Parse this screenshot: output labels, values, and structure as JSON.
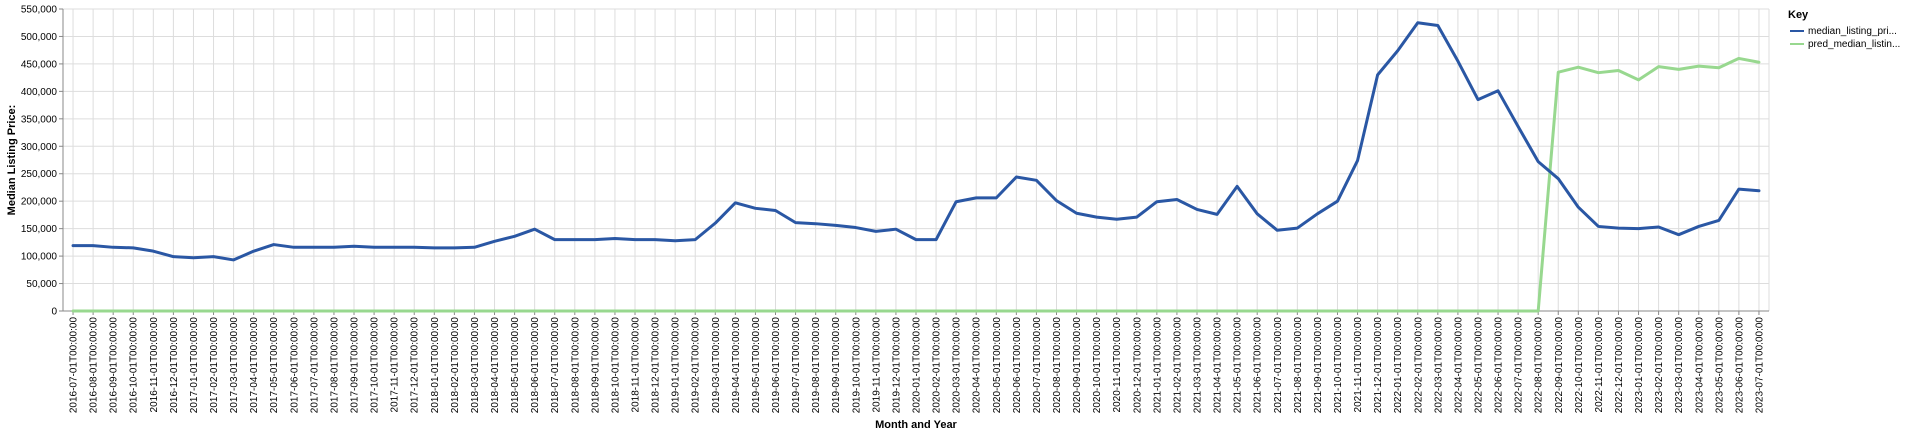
{
  "chart_data": {
    "type": "line",
    "xlabel": "Month and Year",
    "ylabel": "Median Listing Price:",
    "ylim": [
      0,
      550000
    ],
    "yticks": [
      "0",
      "50,000",
      "100,000",
      "150,000",
      "200,000",
      "250,000",
      "300,000",
      "350,000",
      "400,000",
      "450,000",
      "500,000",
      "550,000"
    ],
    "grid": true,
    "legend": {
      "title": "Key",
      "position": "top-right"
    },
    "x": [
      "2016-07-01T00:00:00",
      "2016-08-01T00:00:00",
      "2016-09-01T00:00:00",
      "2016-10-01T00:00:00",
      "2016-11-01T00:00:00",
      "2016-12-01T00:00:00",
      "2017-01-01T00:00:00",
      "2017-02-01T00:00:00",
      "2017-03-01T00:00:00",
      "2017-04-01T00:00:00",
      "2017-05-01T00:00:00",
      "2017-06-01T00:00:00",
      "2017-07-01T00:00:00",
      "2017-08-01T00:00:00",
      "2017-09-01T00:00:00",
      "2017-10-01T00:00:00",
      "2017-11-01T00:00:00",
      "2017-12-01T00:00:00",
      "2018-01-01T00:00:00",
      "2018-02-01T00:00:00",
      "2018-03-01T00:00:00",
      "2018-04-01T00:00:00",
      "2018-05-01T00:00:00",
      "2018-06-01T00:00:00",
      "2018-07-01T00:00:00",
      "2018-08-01T00:00:00",
      "2018-09-01T00:00:00",
      "2018-10-01T00:00:00",
      "2018-11-01T00:00:00",
      "2018-12-01T00:00:00",
      "2019-01-01T00:00:00",
      "2019-02-01T00:00:00",
      "2019-03-01T00:00:00",
      "2019-04-01T00:00:00",
      "2019-05-01T00:00:00",
      "2019-06-01T00:00:00",
      "2019-07-01T00:00:00",
      "2019-08-01T00:00:00",
      "2019-09-01T00:00:00",
      "2019-10-01T00:00:00",
      "2019-11-01T00:00:00",
      "2019-12-01T00:00:00",
      "2020-01-01T00:00:00",
      "2020-02-01T00:00:00",
      "2020-03-01T00:00:00",
      "2020-04-01T00:00:00",
      "2020-05-01T00:00:00",
      "2020-06-01T00:00:00",
      "2020-07-01T00:00:00",
      "2020-08-01T00:00:00",
      "2020-09-01T00:00:00",
      "2020-10-01T00:00:00",
      "2020-11-01T00:00:00",
      "2020-12-01T00:00:00",
      "2021-01-01T00:00:00",
      "2021-02-01T00:00:00",
      "2021-03-01T00:00:00",
      "2021-04-01T00:00:00",
      "2021-05-01T00:00:00",
      "2021-06-01T00:00:00",
      "2021-07-01T00:00:00",
      "2021-08-01T00:00:00",
      "2021-09-01T00:00:00",
      "2021-10-01T00:00:00",
      "2021-11-01T00:00:00",
      "2021-12-01T00:00:00",
      "2022-01-01T00:00:00",
      "2022-02-01T00:00:00",
      "2022-03-01T00:00:00",
      "2022-04-01T00:00:00",
      "2022-05-01T00:00:00",
      "2022-06-01T00:00:00",
      "2022-07-01T00:00:00",
      "2022-08-01T00:00:00",
      "2022-09-01T00:00:00",
      "2022-10-01T00:00:00",
      "2022-11-01T00:00:00",
      "2022-12-01T00:00:00",
      "2023-01-01T00:00:00",
      "2023-02-01T00:00:00",
      "2023-03-01T00:00:00",
      "2023-04-01T00:00:00",
      "2023-05-01T00:00:00",
      "2023-06-01T00:00:00",
      "2023-07-01T00:00:00"
    ],
    "series": [
      {
        "name": "median_listing_pri...",
        "color": "#2a57a4",
        "values": [
          119000,
          119000,
          116000,
          115000,
          109000,
          99000,
          97000,
          99000,
          93000,
          109000,
          121000,
          116000,
          116000,
          116000,
          118000,
          116000,
          116000,
          116000,
          115000,
          115000,
          116000,
          127000,
          136000,
          149000,
          130000,
          130000,
          130000,
          132000,
          130000,
          130000,
          128000,
          130000,
          160000,
          197000,
          187000,
          183000,
          161000,
          159000,
          156000,
          152000,
          145000,
          149000,
          130000,
          130000,
          199000,
          206000,
          206000,
          244000,
          238000,
          201000,
          178000,
          171000,
          167000,
          171000,
          199000,
          203000,
          185000,
          176000,
          227000,
          177000,
          147000,
          151000,
          177000,
          200000,
          274000,
          430000,
          474000,
          525000,
          520000,
          455000,
          385000,
          401000,
          336000,
          272000,
          241000,
          189000,
          154000,
          151000,
          150000,
          153000,
          139000,
          154000,
          165000,
          222000,
          219000
        ]
      },
      {
        "name": "pred_median_listin...",
        "color": "#98d88f",
        "values": [
          0,
          0,
          0,
          0,
          0,
          0,
          0,
          0,
          0,
          0,
          0,
          0,
          0,
          0,
          0,
          0,
          0,
          0,
          0,
          0,
          0,
          0,
          0,
          0,
          0,
          0,
          0,
          0,
          0,
          0,
          0,
          0,
          0,
          0,
          0,
          0,
          0,
          0,
          0,
          0,
          0,
          0,
          0,
          0,
          0,
          0,
          0,
          0,
          0,
          0,
          0,
          0,
          0,
          0,
          0,
          0,
          0,
          0,
          0,
          0,
          0,
          0,
          0,
          0,
          0,
          0,
          0,
          0,
          0,
          0,
          0,
          0,
          0,
          0,
          435000,
          444000,
          434000,
          438000,
          421000,
          445000,
          440000,
          446000,
          443000,
          460000,
          453000
        ]
      }
    ]
  }
}
